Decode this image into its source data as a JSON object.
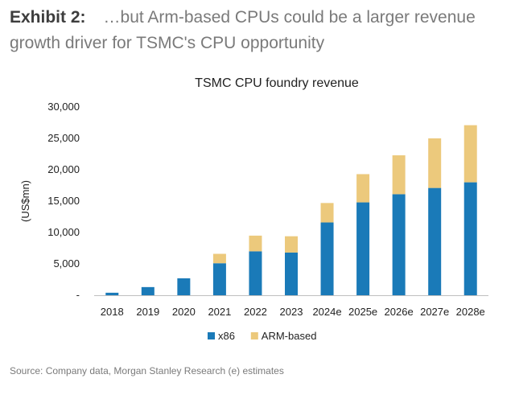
{
  "header": {
    "label": "Exhibit 2:",
    "title": "…but Arm-based CPUs could be a larger revenue growth driver for TSMC's CPU opportunity"
  },
  "source": "Source: Company data, Morgan Stanley Research (e) estimates",
  "colors": {
    "x86": "#1a7ab8",
    "arm": "#ecc97c",
    "axis": "#bfbfbf",
    "text": "#222222"
  },
  "chart_data": {
    "type": "bar",
    "stacked": true,
    "title": "TSMC CPU foundry revenue",
    "ylabel": "(US$mn)",
    "xlabel": "",
    "ylim": [
      0,
      30000
    ],
    "yticks": [
      0,
      5000,
      10000,
      15000,
      20000,
      25000,
      30000
    ],
    "ytick_labels": [
      "-",
      "5,000",
      "10,000",
      "15,000",
      "20,000",
      "25,000",
      "30,000"
    ],
    "grid": false,
    "legend_position": "bottom",
    "categories": [
      "2018",
      "2019",
      "2020",
      "2021",
      "2022",
      "2023",
      "2024e",
      "2025e",
      "2026e",
      "2027e",
      "2028e"
    ],
    "series": [
      {
        "name": "x86",
        "color": "#1a7ab8",
        "values": [
          400,
          1300,
          2700,
          5100,
          7000,
          6800,
          11600,
          14800,
          16100,
          17100,
          18000
        ]
      },
      {
        "name": "ARM-based",
        "color": "#ecc97c",
        "values": [
          0,
          0,
          0,
          1500,
          2500,
          2600,
          3100,
          4500,
          6200,
          7900,
          9100
        ]
      }
    ]
  }
}
